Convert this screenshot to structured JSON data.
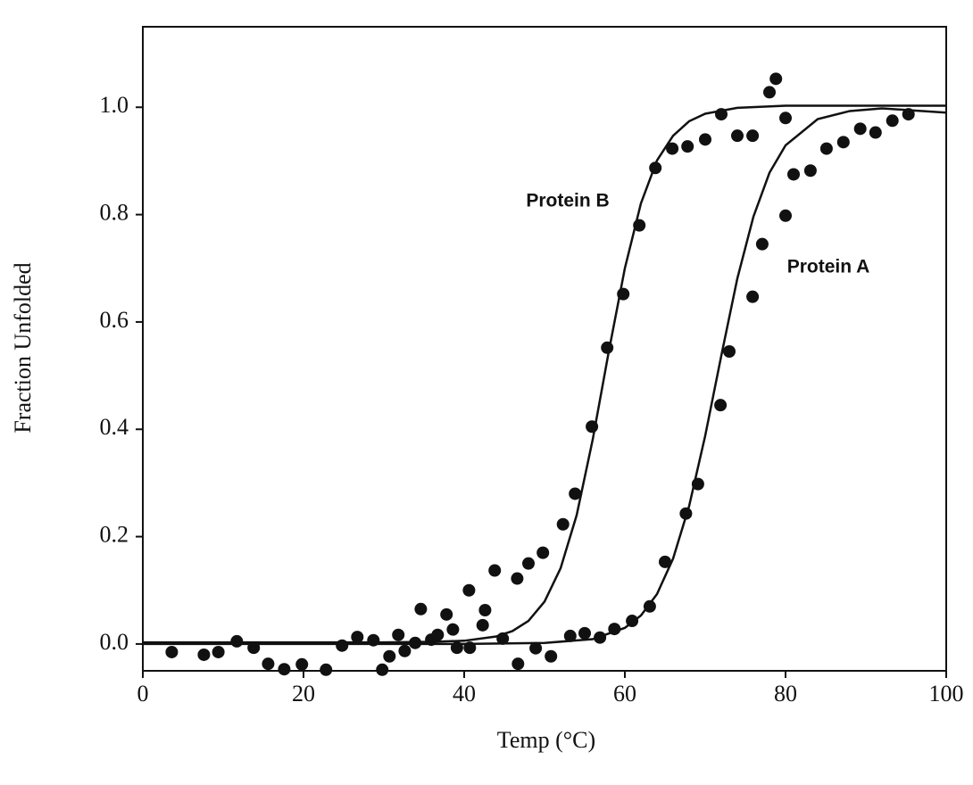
{
  "chart_data": {
    "type": "scatter",
    "x_label": "Temp (°C)",
    "y_label": "Fraction Unfolded",
    "xlim": [
      0,
      100
    ],
    "ylim": [
      -0.05,
      1.15
    ],
    "xticks": [
      0,
      20,
      40,
      60,
      80,
      100
    ],
    "yticks": [
      {
        "value": 0,
        "label": "0.0"
      },
      0.2,
      0.4,
      0.6,
      0.8,
      {
        "value": 1,
        "label": "1.0"
      }
    ],
    "series": [
      {
        "name": "Protein B",
        "color": "#111111",
        "x": [
          11.7,
          24.8,
          26.7,
          28.7,
          31.8,
          33.9,
          34.6,
          35.9,
          36.7,
          37.8,
          38.6,
          40.6,
          42.3,
          42.6,
          43.8,
          44.8,
          46.6,
          48.0,
          49.8,
          52.3,
          53.8,
          55.9,
          57.8,
          59.8,
          61.8,
          63.8,
          65.9,
          67.8,
          70.0,
          72.0,
          74.0,
          75.9,
          78.0,
          78.8,
          80.0
        ],
        "values": [
          0.005,
          -0.003,
          0.013,
          0.007,
          0.017,
          0.002,
          0.065,
          0.008,
          0.017,
          0.055,
          0.027,
          0.1,
          0.035,
          0.063,
          0.137,
          0.01,
          0.122,
          0.15,
          0.17,
          0.223,
          0.28,
          0.405,
          0.552,
          0.652,
          0.78,
          0.887,
          0.923,
          0.927,
          0.94,
          0.987,
          0.947,
          0.947,
          1.028,
          1.053,
          0.98
        ],
        "fit": {
          "x": [
            0,
            20,
            30,
            36,
            40,
            44,
            46,
            48,
            50,
            52,
            54,
            56,
            58,
            60,
            62,
            64,
            66,
            68,
            70,
            74,
            80,
            100
          ],
          "values": [
            0.003,
            0.003,
            0.003,
            0.004,
            0.006,
            0.014,
            0.024,
            0.043,
            0.079,
            0.141,
            0.24,
            0.381,
            0.545,
            0.7,
            0.821,
            0.901,
            0.947,
            0.974,
            0.988,
            0.999,
            1.003,
            1.003
          ]
        }
      },
      {
        "name": "Protein A",
        "color": "#111111",
        "x": [
          3.6,
          7.6,
          9.4,
          13.8,
          15.6,
          17.6,
          19.8,
          22.8,
          29.8,
          30.7,
          32.6,
          39.1,
          40.7,
          46.7,
          48.9,
          50.8,
          53.2,
          55.0,
          56.9,
          58.7,
          60.9,
          63.1,
          65.0,
          67.6,
          69.1,
          71.9,
          73.0,
          75.9,
          77.1,
          80.0,
          81.0,
          83.1,
          85.1,
          87.2,
          89.3,
          91.2,
          93.3,
          95.3
        ],
        "values": [
          -0.015,
          -0.02,
          -0.015,
          -0.007,
          -0.037,
          -0.047,
          -0.038,
          -0.048,
          -0.048,
          -0.023,
          -0.013,
          -0.007,
          -0.007,
          -0.037,
          -0.008,
          -0.023,
          0.015,
          0.02,
          0.012,
          0.028,
          0.043,
          0.07,
          0.153,
          0.243,
          0.298,
          0.445,
          0.545,
          0.647,
          0.745,
          0.798,
          0.875,
          0.882,
          0.923,
          0.935,
          0.96,
          0.953,
          0.975,
          0.987
        ],
        "fit": {
          "x": [
            0,
            40,
            50,
            56,
            60,
            62,
            64,
            66,
            68,
            70,
            72,
            74,
            76,
            78,
            80,
            84,
            88,
            92,
            100
          ],
          "values": [
            0,
            0,
            0.002,
            0.009,
            0.03,
            0.053,
            0.093,
            0.159,
            0.257,
            0.388,
            0.537,
            0.681,
            0.796,
            0.878,
            0.929,
            0.978,
            0.993,
            0.998,
            0.99
          ]
        }
      }
    ]
  }
}
